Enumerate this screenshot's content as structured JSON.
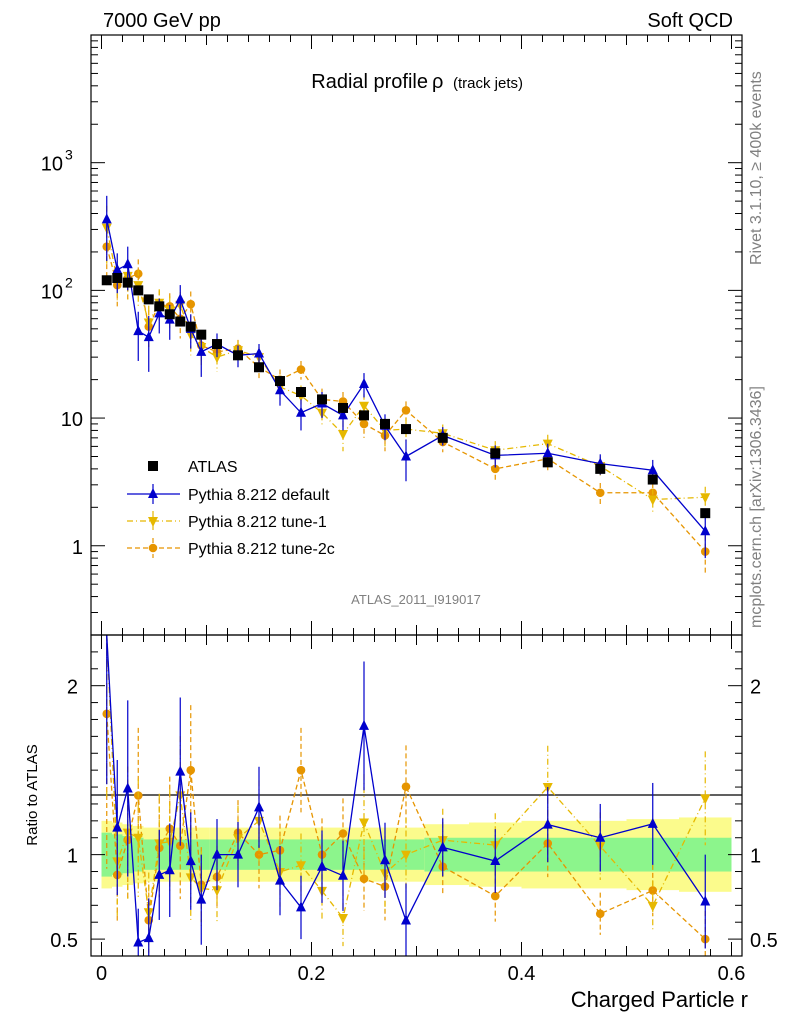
{
  "header": {
    "left": "7000 GeV pp",
    "right": "Soft QCD"
  },
  "side": {
    "rivet": "Rivet 3.1.10, ≥ 400k events",
    "mcplots": "mcplots.cern.ch [arXiv:1306.3436]"
  },
  "colors": {
    "atlas": "#000000",
    "default": "#0000cc",
    "tune1": "#e6b800",
    "tune2c": "#e69500",
    "band_inner": "#8cf58c",
    "band_outer": "#fbfb8c"
  },
  "chart_data": {
    "type": "line",
    "title": "Radial profile",
    "title_symbol": "ρ",
    "title_suffix": "(track jets)",
    "analysis": "ATLAS_2011_I919017",
    "xlabel": "Charged Particle r",
    "ylabel_ratio": "Ratio to ATLAS",
    "xlim": [
      -0.01,
      0.61
    ],
    "ylim_main": [
      0.2,
      10000
    ],
    "ylim_ratio": [
      0.4,
      2.3
    ],
    "yscale_main": "log",
    "xticks": [
      0,
      0.2,
      0.4,
      0.6
    ],
    "xtick_labels": [
      "0",
      "0.2",
      "0.4",
      "0.6"
    ],
    "main_yticks": [
      {
        "v": 1,
        "base": "1",
        "exp": ""
      },
      {
        "v": 10,
        "base": "10",
        "exp": ""
      },
      {
        "v": 100,
        "base": "10",
        "exp": "2"
      },
      {
        "v": 1000,
        "base": "10",
        "exp": "3"
      }
    ],
    "ratio_yticks": [
      {
        "v": 0.5,
        "label": "0.5"
      },
      {
        "v": 1,
        "label": "1"
      },
      {
        "v": 2,
        "label": "2"
      }
    ],
    "x": [
      0.005,
      0.015,
      0.025,
      0.035,
      0.045,
      0.055,
      0.065,
      0.075,
      0.085,
      0.095,
      0.11,
      0.13,
      0.15,
      0.17,
      0.19,
      0.21,
      0.23,
      0.25,
      0.27,
      0.29,
      0.325,
      0.375,
      0.425,
      0.475,
      0.525,
      0.575
    ],
    "band": {
      "inner": [
        0.13,
        0.12,
        0.11,
        0.1,
        0.09,
        0.09,
        0.09,
        0.09,
        0.09,
        0.09,
        0.09,
        0.09,
        0.09,
        0.09,
        0.09,
        0.09,
        0.09,
        0.09,
        0.09,
        0.09,
        0.1,
        0.1,
        0.1,
        0.1,
        0.1,
        0.1
      ],
      "outer": [
        0.2,
        0.19,
        0.18,
        0.17,
        0.16,
        0.16,
        0.16,
        0.16,
        0.16,
        0.16,
        0.16,
        0.16,
        0.16,
        0.16,
        0.16,
        0.16,
        0.16,
        0.16,
        0.16,
        0.16,
        0.18,
        0.19,
        0.2,
        0.2,
        0.21,
        0.22
      ]
    },
    "series": [
      {
        "name": "ATLAS",
        "style": "data",
        "marker": "square",
        "values": [
          120,
          125,
          115,
          100,
          85,
          75,
          65,
          57,
          52,
          45,
          38,
          31,
          25,
          19.5,
          16,
          14,
          12,
          10.5,
          9,
          8.2,
          7,
          5.3,
          4.5,
          4,
          3.3,
          1.8
        ]
      },
      {
        "name": "Pythia 8.212 default",
        "style": "solid",
        "marker": "triangle-up",
        "values": [
          360,
          145,
          160,
          48,
          43,
          66,
          59,
          85,
          50,
          33,
          38,
          31,
          32,
          16.5,
          11,
          13,
          10.5,
          18.5,
          8.7,
          5,
          7.3,
          5.1,
          5.3,
          4.4,
          3.9,
          1.3
        ],
        "errors": [
          190,
          50,
          60,
          20,
          20,
          20,
          18,
          25,
          15,
          12,
          8,
          6,
          6,
          4,
          3,
          3,
          2.5,
          4,
          2,
          1.8,
          1.2,
          1,
          1,
          0.8,
          0.8,
          0.5
        ]
      },
      {
        "name": "Pythia 8.212 tune-1",
        "style": "dashdot",
        "marker": "triangle-down",
        "values": [
          310,
          120,
          130,
          110,
          56,
          80,
          70,
          77,
          45,
          36,
          30,
          34,
          30,
          17.5,
          15,
          11,
          7.5,
          12.5,
          8,
          8.2,
          7.6,
          5.6,
          6.3,
          4.2,
          2.3,
          2.4
        ],
        "errors": [
          150,
          40,
          45,
          35,
          20,
          22,
          20,
          20,
          14,
          10,
          7,
          6,
          6,
          4,
          3,
          2.5,
          2,
          3,
          2,
          1.8,
          1.3,
          1,
          1.1,
          0.8,
          0.5,
          0.5
        ]
      },
      {
        "name": "Pythia 8.212 tune-2c",
        "style": "dashed",
        "marker": "circle",
        "values": [
          220,
          110,
          125,
          135,
          52,
          78,
          75,
          60,
          78,
          37,
          33,
          35,
          25,
          20,
          24,
          14,
          13.5,
          9,
          7.3,
          11.5,
          6.5,
          4,
          4.8,
          2.6,
          2.6,
          0.9
        ],
        "errors": [
          110,
          35,
          40,
          40,
          18,
          22,
          20,
          18,
          20,
          10,
          7,
          6,
          5,
          4,
          4,
          3,
          2.5,
          2,
          1.8,
          2,
          1.1,
          0.8,
          0.9,
          0.5,
          0.5,
          0.3
        ]
      }
    ]
  }
}
